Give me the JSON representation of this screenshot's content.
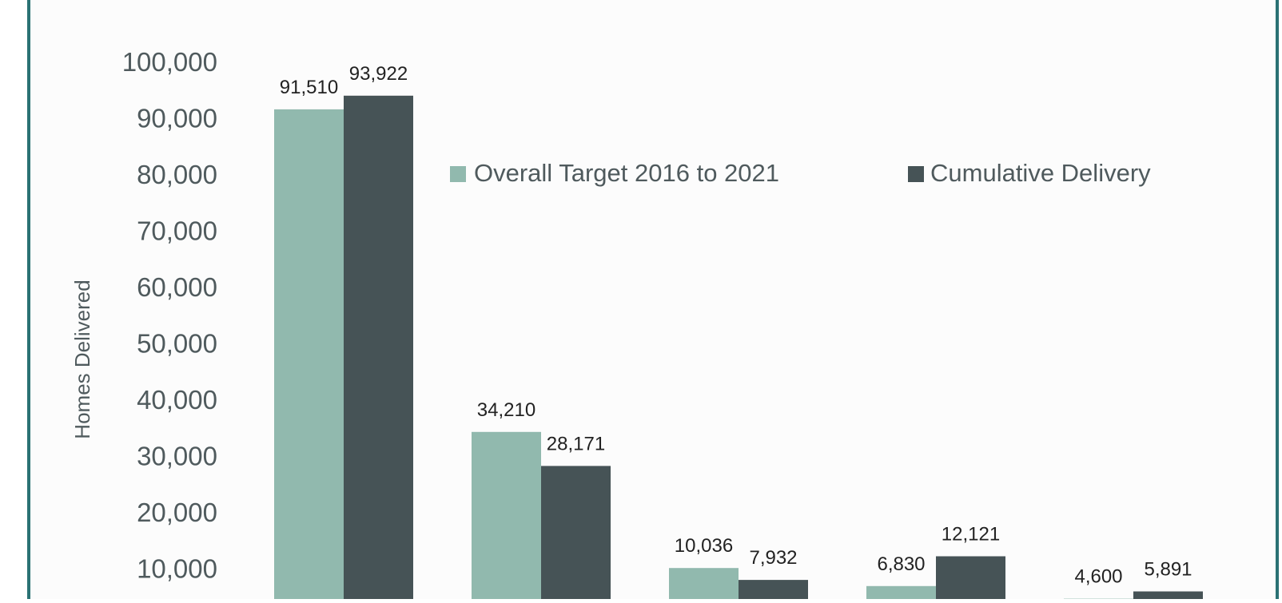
{
  "chart_data": {
    "type": "bar",
    "ylabel": "Homes Delivered",
    "ylim": [
      0,
      100000
    ],
    "y_ticks": [
      "10,000",
      "20,000",
      "30,000",
      "40,000",
      "50,000",
      "60,000",
      "70,000",
      "80,000",
      "90,000",
      "100,000"
    ],
    "legend_position": "top-right",
    "series": [
      {
        "name": "Overall Target 2016 to 2021",
        "color": "#91b9ae",
        "values": [
          91510,
          34210,
          10036,
          6830,
          4600
        ],
        "labels": [
          "91,510",
          "34,210",
          "10,036",
          "6,830",
          "4,600"
        ]
      },
      {
        "name": "Cumulative Delivery",
        "color": "#465356",
        "values": [
          93922,
          28171,
          7932,
          12121,
          5891
        ],
        "labels": [
          "93,922",
          "28,171",
          "7,932",
          "12,121",
          "5,891"
        ]
      }
    ],
    "colors": {
      "border": "#2b7274",
      "background": "#fcfcfc",
      "tick_text": "#4f5a5d",
      "label_text": "#222222"
    }
  }
}
